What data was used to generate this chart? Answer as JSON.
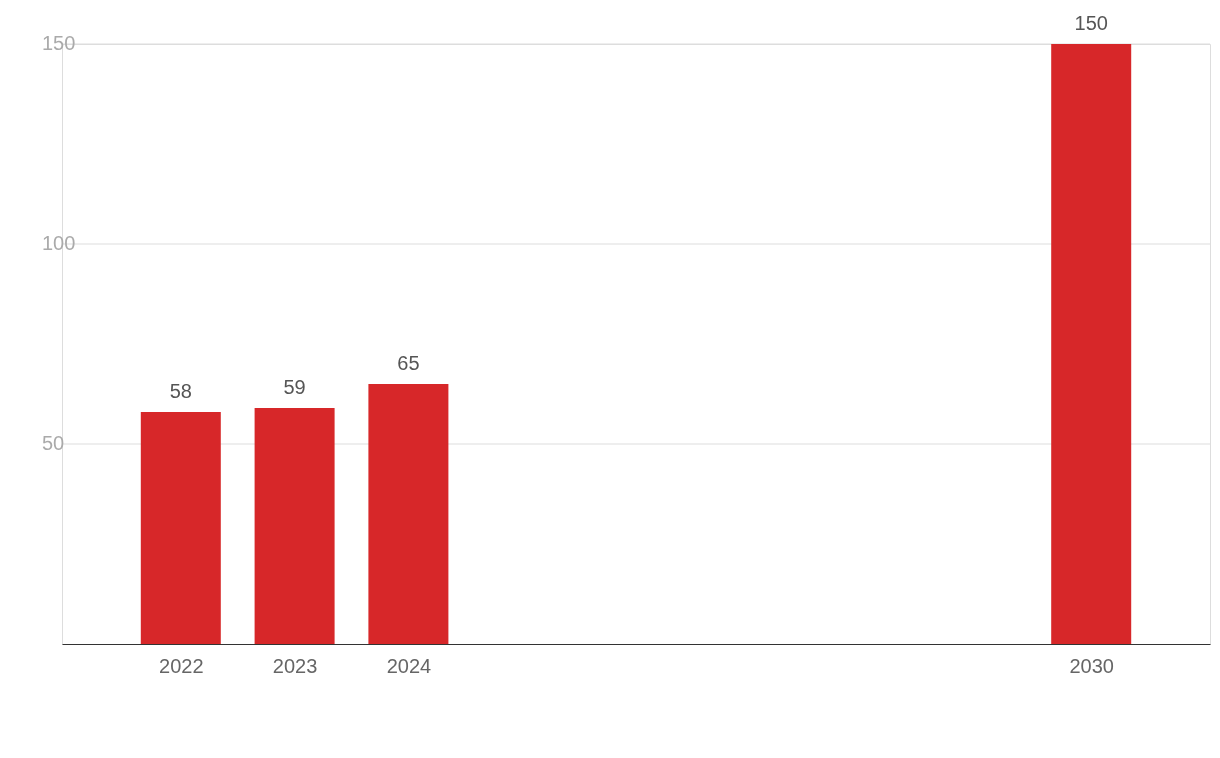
{
  "chart_data": {
    "type": "bar",
    "x": [
      2022,
      2023,
      2024,
      2030
    ],
    "series": [
      {
        "color": "#d72729",
        "values": [
          58,
          59,
          65,
          150
        ]
      }
    ],
    "xlim": [
      2021,
      2031
    ],
    "xticks": [
      2022,
      2023,
      2024,
      2030
    ],
    "ylim": [
      0,
      150
    ],
    "yticks": [
      50,
      100,
      150
    ],
    "grid": "y",
    "data_labels": true
  }
}
